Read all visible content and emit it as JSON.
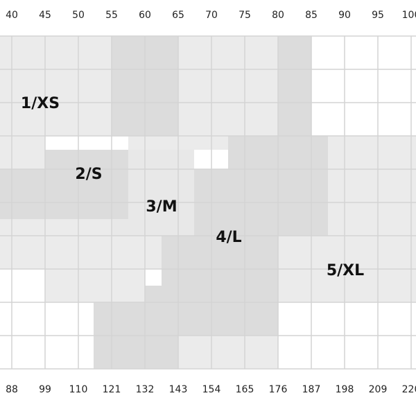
{
  "top_labels": [
    "40",
    "45",
    "50",
    "55",
    "60",
    "65",
    "70",
    "75",
    "80",
    "85",
    "90",
    "95",
    "100"
  ],
  "bottom_labels": [
    "88",
    "99",
    "110",
    "121",
    "132",
    "143",
    "154",
    "165",
    "176",
    "187",
    "198",
    "209",
    "220"
  ],
  "sizes": [
    "1/XS",
    "2/S",
    "3/M",
    "4/L",
    "5/XL"
  ]
}
